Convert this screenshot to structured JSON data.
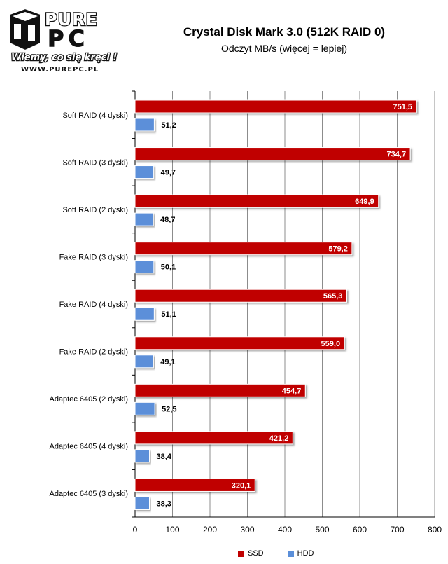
{
  "branding": {
    "logo_top": "PURE",
    "logo_pc": "PC",
    "tagline": "Wiemy, co się kręci !",
    "url": "WWW.PUREPC.PL"
  },
  "chart_data": {
    "type": "bar",
    "orientation": "horizontal",
    "title": "Crystal Disk Mark 3.0 (512K RAID 0)",
    "subtitle": "Odczyt MB/s (więcej = lepiej)",
    "categories": [
      "Soft RAID (4 dyski)",
      "Soft RAID (3 dyski)",
      "Soft RAID (2 dyski)",
      "Fake RAID (3 dyski)",
      "Fake RAID (4 dyski)",
      "Fake RAID (2 dyski)",
      "Adaptec 6405 (2 dyski)",
      "Adaptec 6405 (4 dyski)",
      "Adaptec 6405 (3 dyski)"
    ],
    "series": [
      {
        "name": "SSD",
        "color": "#C00000",
        "values": [
          751.5,
          734.7,
          649.9,
          579.2,
          565.3,
          559.0,
          454.7,
          421.2,
          320.1
        ],
        "labels": [
          "751,5",
          "734,7",
          "649,9",
          "579,2",
          "565,3",
          "559,0",
          "454,7",
          "421,2",
          "320,1"
        ]
      },
      {
        "name": "HDD",
        "color": "#5B8FD9",
        "values": [
          51.2,
          49.7,
          48.7,
          50.1,
          51.1,
          49.1,
          52.5,
          38.4,
          38.3
        ],
        "labels": [
          "51,2",
          "49,7",
          "48,7",
          "50,1",
          "51,1",
          "49,1",
          "52,5",
          "38,4",
          "38,3"
        ]
      }
    ],
    "xlim": [
      0,
      800
    ],
    "xticks": [
      0,
      100,
      200,
      300,
      400,
      500,
      600,
      700,
      800
    ],
    "grid": true,
    "legend": "bottom"
  }
}
